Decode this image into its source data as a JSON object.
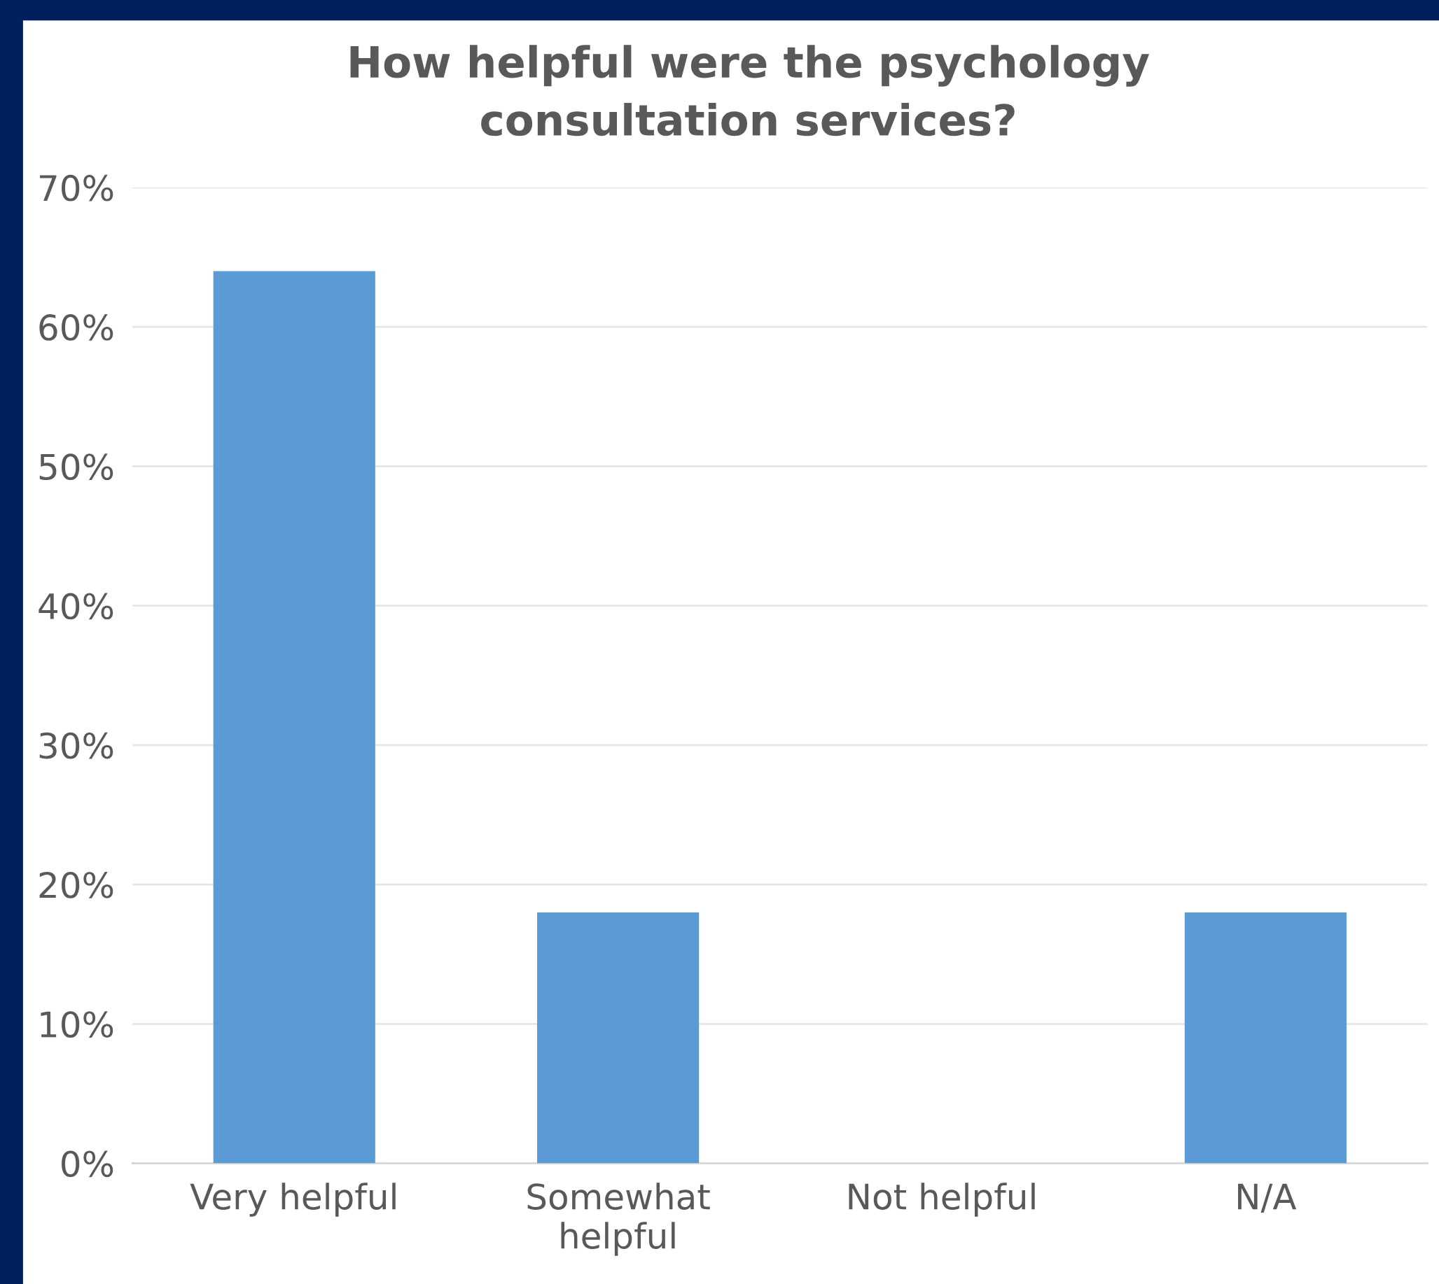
{
  "chart_data": {
    "type": "bar",
    "title": "How helpful were the psychology\nconsultation services?",
    "categories": [
      "Very helpful",
      "Somewhat\nhelpful",
      "Not helpful",
      "N/A"
    ],
    "values": [
      64,
      18,
      0,
      18
    ],
    "color": "#5b9bd5",
    "ylim": [
      0,
      70
    ],
    "yticks": [
      {
        "value": 0,
        "label": "0%"
      },
      {
        "value": 10,
        "label": "10%"
      },
      {
        "value": 20,
        "label": "20%"
      },
      {
        "value": 30,
        "label": "30%"
      },
      {
        "value": 40,
        "label": "40%"
      },
      {
        "value": 50,
        "label": "50%"
      },
      {
        "value": 60,
        "label": "60%"
      },
      {
        "value": 70,
        "label": "70%"
      }
    ],
    "grid": "y",
    "legend": false
  }
}
